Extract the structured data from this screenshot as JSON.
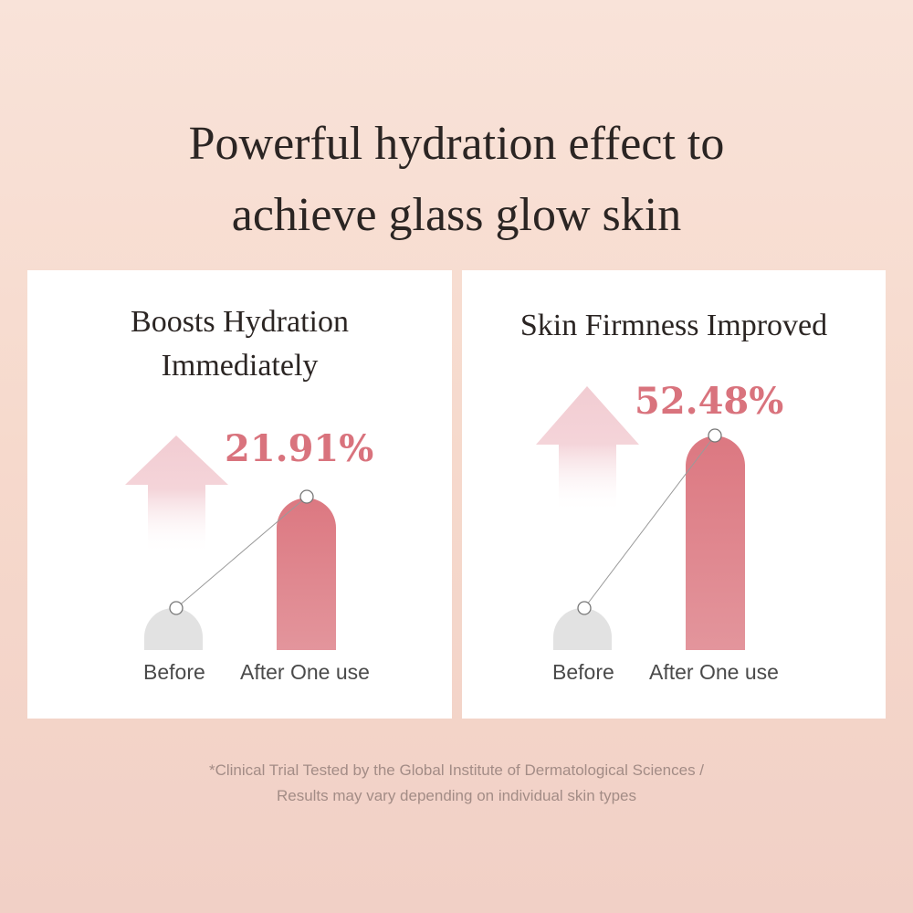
{
  "title": {
    "line1": "Powerful hydration effect to",
    "line2": "achieve glass glow skin"
  },
  "chart_data": [
    {
      "type": "bar",
      "title": "Boosts Hydration Immediately",
      "title_line1": "Boosts Hydration",
      "title_line2": "Immediately",
      "categories": [
        "Before",
        "After One use"
      ],
      "increase_label": "21.91%",
      "increase_percent": 21.91,
      "colors": {
        "before": "#e2e2e2",
        "after": "#dd7f88",
        "label": "#d9737d"
      }
    },
    {
      "type": "bar",
      "title": "Skin Firmness Improved",
      "categories": [
        "Before",
        "After One use"
      ],
      "increase_label": "52.48%",
      "increase_percent": 52.48,
      "colors": {
        "before": "#e2e2e2",
        "after": "#dd7f88",
        "label": "#d9737d"
      }
    }
  ],
  "footnote": {
    "line1": "*Clinical Trial Tested by the Global Institute of Dermatological Sciences /",
    "line2": "Results may vary depending on individual skin types"
  }
}
